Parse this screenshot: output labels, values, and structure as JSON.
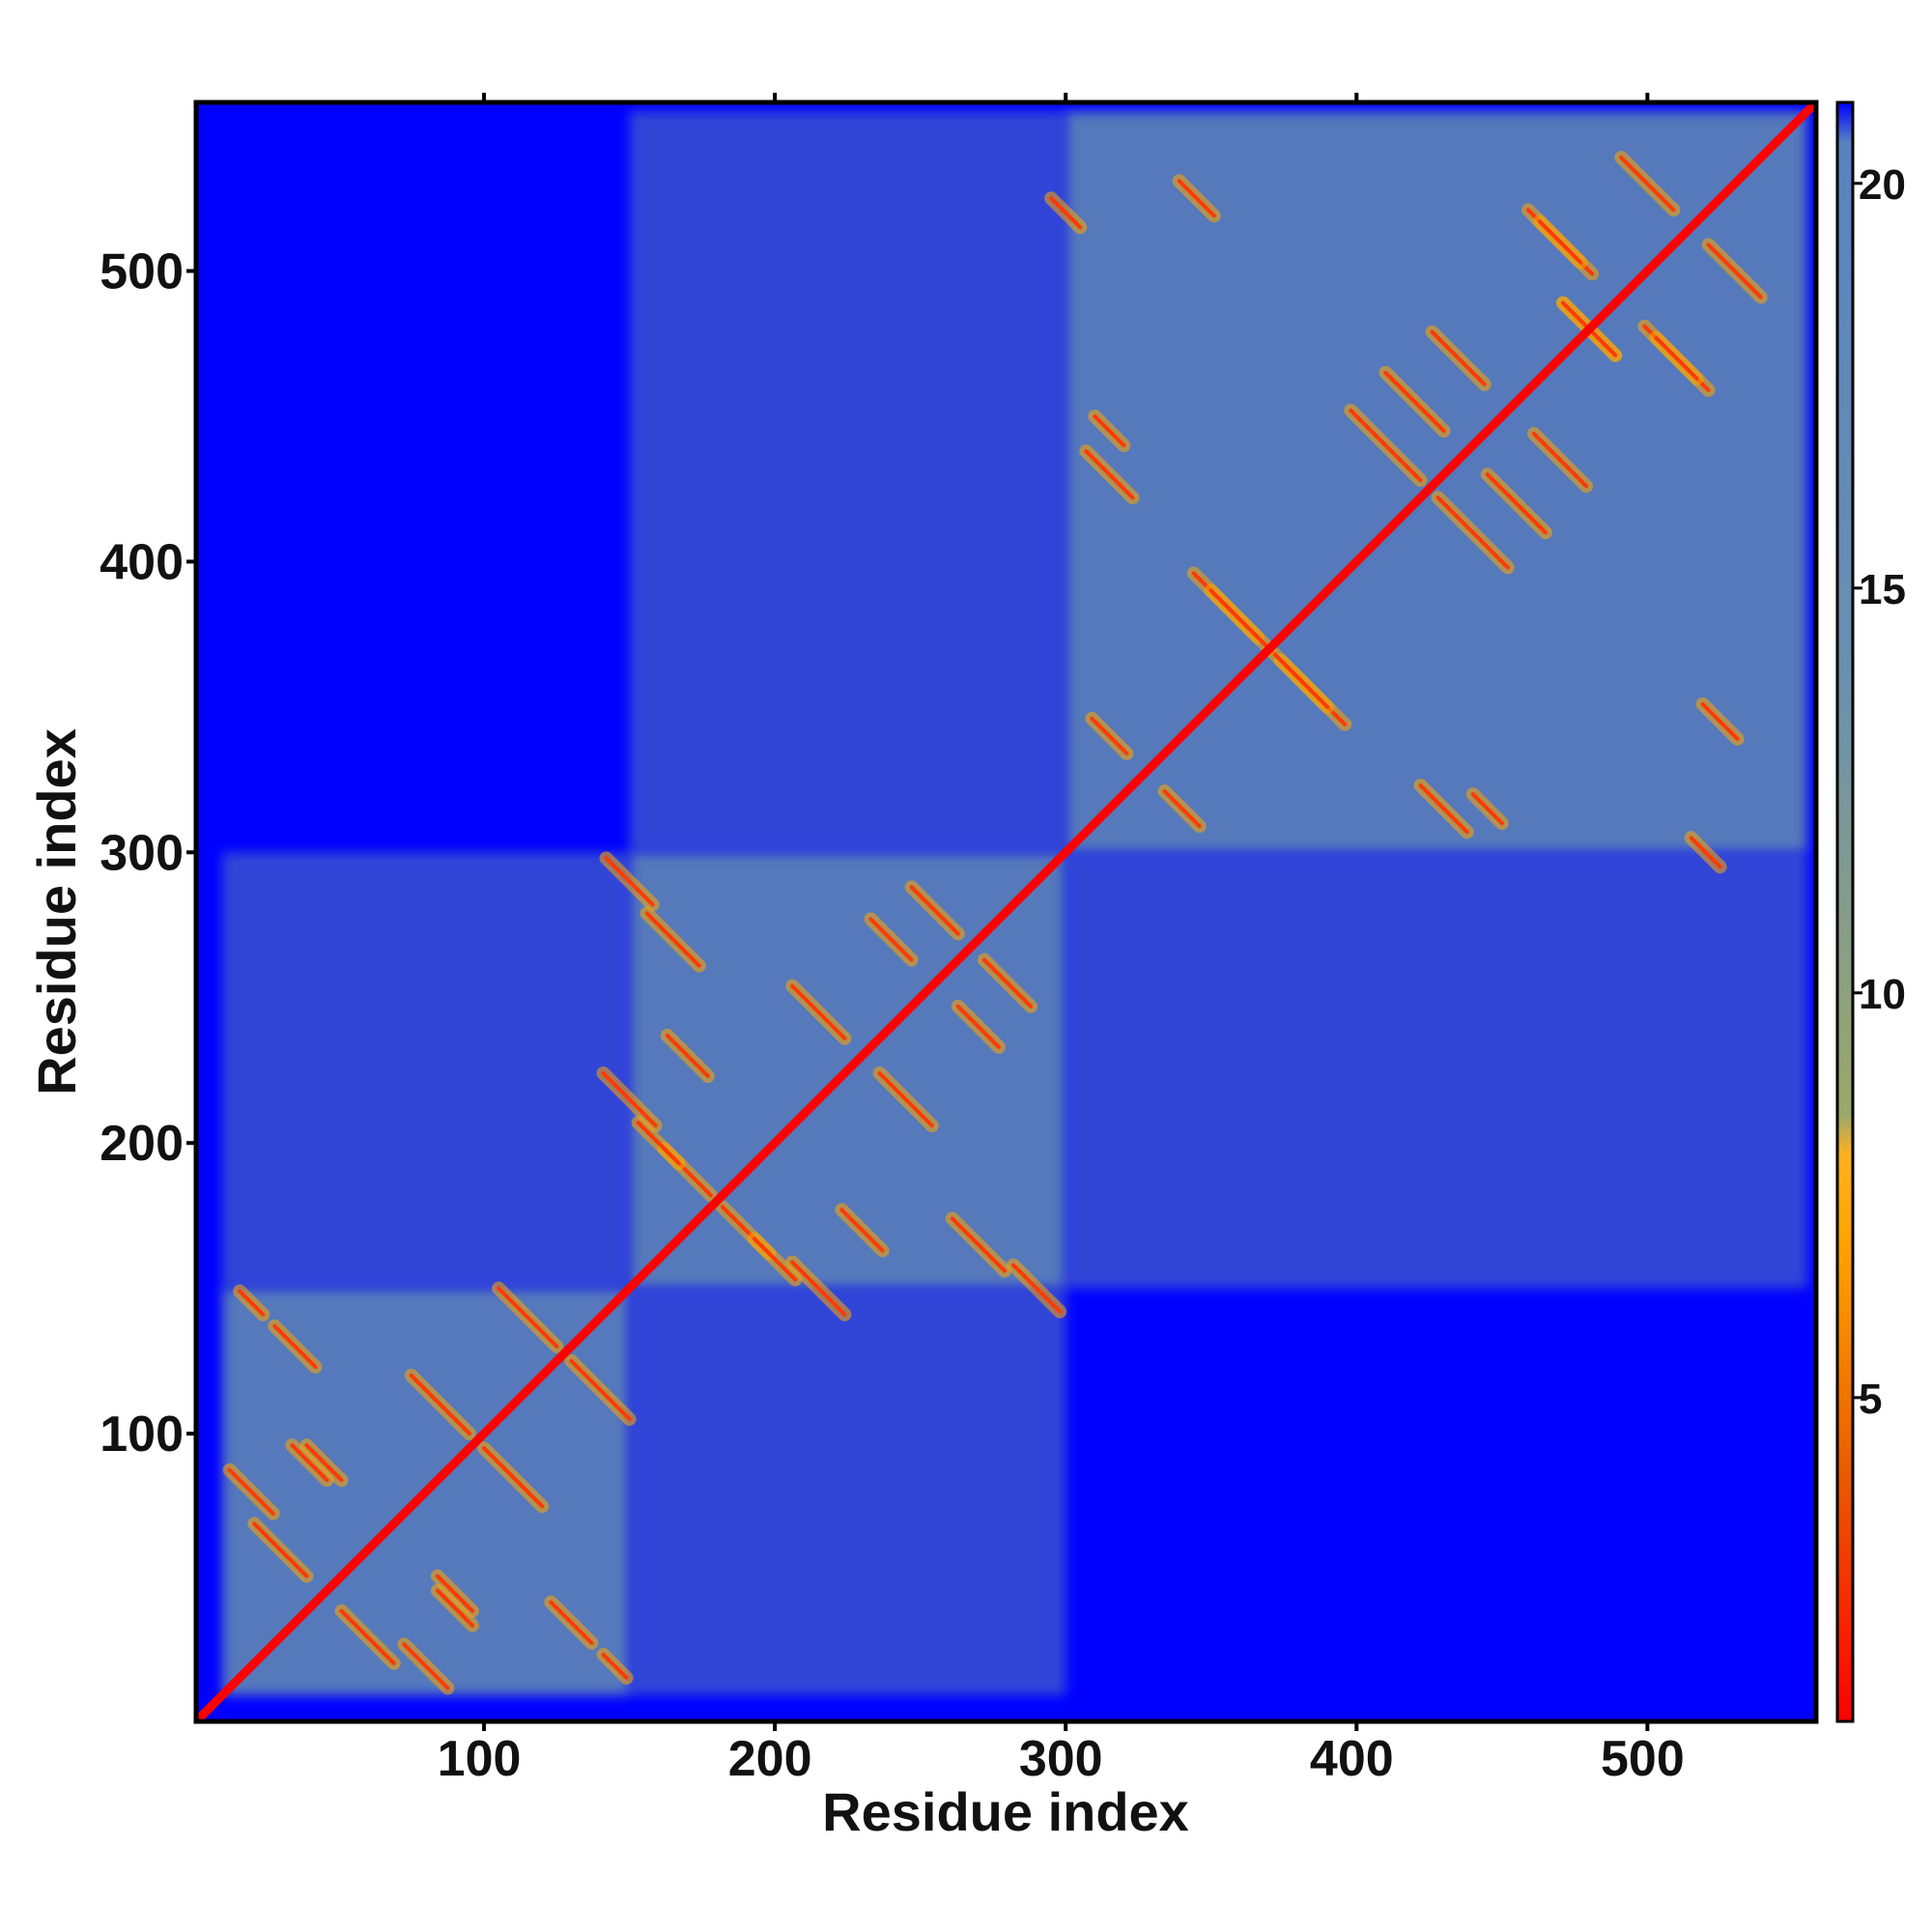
{
  "chart_data": {
    "type": "heatmap",
    "title": "",
    "xlabel": "Residue index",
    "ylabel": "Residue index",
    "xlim": [
      1,
      558
    ],
    "ylim": [
      1,
      558
    ],
    "x_ticks": [
      100,
      200,
      300,
      400,
      500
    ],
    "y_ticks": [
      100,
      200,
      300,
      400,
      500
    ],
    "colorbar": {
      "range": [
        1,
        21
      ],
      "ticks": [
        5,
        10,
        15,
        20
      ],
      "color_stops": [
        {
          "value": 1,
          "color": "#ff0000"
        },
        {
          "value": 4,
          "color": "#e85a00"
        },
        {
          "value": 7,
          "color": "#ffa500"
        },
        {
          "value": 8,
          "color": "#ffb020"
        },
        {
          "value": 8.5,
          "color": "#9aa86a"
        },
        {
          "value": 14,
          "color": "#6a8fb0"
        },
        {
          "value": 20.5,
          "color": "#5a82c0"
        },
        {
          "value": 21,
          "color": "#0000ff"
        }
      ]
    },
    "background_value": 21,
    "background_color": "#0000ff",
    "contact_color": "#5a80b8",
    "diagonal_color": "#ff0000",
    "domains": [
      {
        "start": 10,
        "end": 150
      },
      {
        "start": 150,
        "end": 300
      },
      {
        "start": 300,
        "end": 555
      }
    ],
    "contact_lines": [
      {
        "x": 20,
        "y": 80,
        "len": 15,
        "dir": "anti"
      },
      {
        "x": 45,
        "y": 90,
        "len": 12,
        "dir": "anti"
      },
      {
        "x": 60,
        "y": 30,
        "len": 18,
        "dir": "anti"
      },
      {
        "x": 90,
        "y": 40,
        "len": 12,
        "dir": "anti"
      },
      {
        "x": 130,
        "y": 35,
        "len": 14,
        "dir": "anti"
      },
      {
        "x": 20,
        "y": 145,
        "len": 8,
        "dir": "anti"
      },
      {
        "x": 85,
        "y": 110,
        "len": 20,
        "dir": "anti"
      },
      {
        "x": 115,
        "y": 140,
        "len": 20,
        "dir": "anti"
      },
      {
        "x": 150,
        "y": 290,
        "len": 16,
        "dir": "anti"
      },
      {
        "x": 150,
        "y": 215,
        "len": 18,
        "dir": "anti"
      },
      {
        "x": 170,
        "y": 230,
        "len": 14,
        "dir": "anti"
      },
      {
        "x": 190,
        "y": 170,
        "len": 16,
        "dir": "anti"
      },
      {
        "x": 200,
        "y": 160,
        "len": 14,
        "dir": "anti"
      },
      {
        "x": 215,
        "y": 245,
        "len": 18,
        "dir": "anti"
      },
      {
        "x": 240,
        "y": 270,
        "len": 14,
        "dir": "anti"
      },
      {
        "x": 255,
        "y": 280,
        "len": 16,
        "dir": "anti"
      },
      {
        "x": 270,
        "y": 165,
        "len": 18,
        "dir": "anti"
      },
      {
        "x": 315,
        "y": 445,
        "len": 10,
        "dir": "anti"
      },
      {
        "x": 340,
        "y": 315,
        "len": 12,
        "dir": "anti"
      },
      {
        "x": 355,
        "y": 385,
        "len": 22,
        "dir": "anti"
      },
      {
        "x": 380,
        "y": 360,
        "len": 20,
        "dir": "anti"
      },
      {
        "x": 410,
        "y": 440,
        "len": 24,
        "dir": "anti"
      },
      {
        "x": 430,
        "y": 315,
        "len": 16,
        "dir": "anti"
      },
      {
        "x": 435,
        "y": 470,
        "len": 18,
        "dir": "anti"
      },
      {
        "x": 455,
        "y": 420,
        "len": 20,
        "dir": "anti"
      },
      {
        "x": 470,
        "y": 510,
        "len": 22,
        "dir": "anti"
      },
      {
        "x": 480,
        "y": 480,
        "len": 18,
        "dir": "anti"
      },
      {
        "x": 500,
        "y": 530,
        "len": 18,
        "dir": "anti"
      },
      {
        "x": 510,
        "y": 470,
        "len": 14,
        "dir": "anti"
      },
      {
        "x": 520,
        "y": 300,
        "len": 10,
        "dir": "anti"
      },
      {
        "x": 525,
        "y": 345,
        "len": 12,
        "dir": "anti"
      }
    ]
  }
}
